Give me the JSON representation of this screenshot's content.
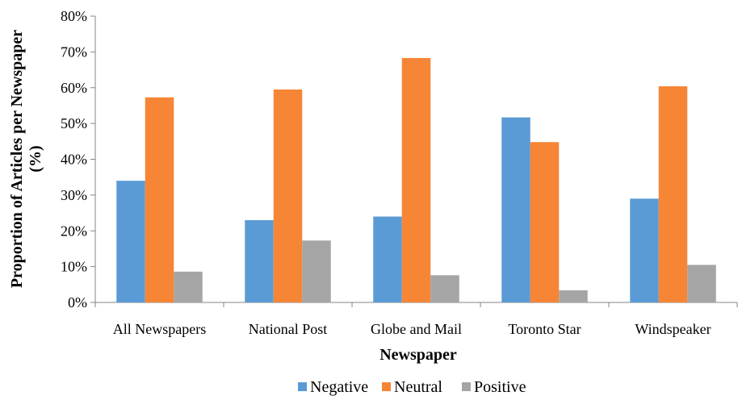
{
  "chart_data": {
    "type": "bar",
    "title": "",
    "xlabel": "Newspaper",
    "ylabel": "Proportion of Articles per Newspaper (%)",
    "ylabel_lines": [
      "Proportion of Articles per Newspaper",
      "(%)"
    ],
    "categories": [
      "All Newspapers",
      "National Post",
      "Globe and Mail",
      "Toronto Star",
      "Windspeaker"
    ],
    "series": [
      {
        "name": "Negative",
        "color": "#5B9BD5",
        "values": [
          34,
          23,
          24,
          51.7,
          29
        ]
      },
      {
        "name": "Neutral",
        "color": "#F68535",
        "values": [
          57.3,
          59.5,
          68.3,
          44.8,
          60.4
        ]
      },
      {
        "name": "Positive",
        "color": "#A5A5A5",
        "values": [
          8.6,
          17.3,
          7.6,
          3.4,
          10.5
        ]
      }
    ],
    "ylim": [
      0,
      80
    ],
    "yticks": [
      0,
      10,
      20,
      30,
      40,
      50,
      60,
      70,
      80
    ],
    "ytick_labels": [
      "0%",
      "10%",
      "20%",
      "30%",
      "40%",
      "50%",
      "60%",
      "70%",
      "80%"
    ],
    "grid": false,
    "legend": "bottom"
  }
}
